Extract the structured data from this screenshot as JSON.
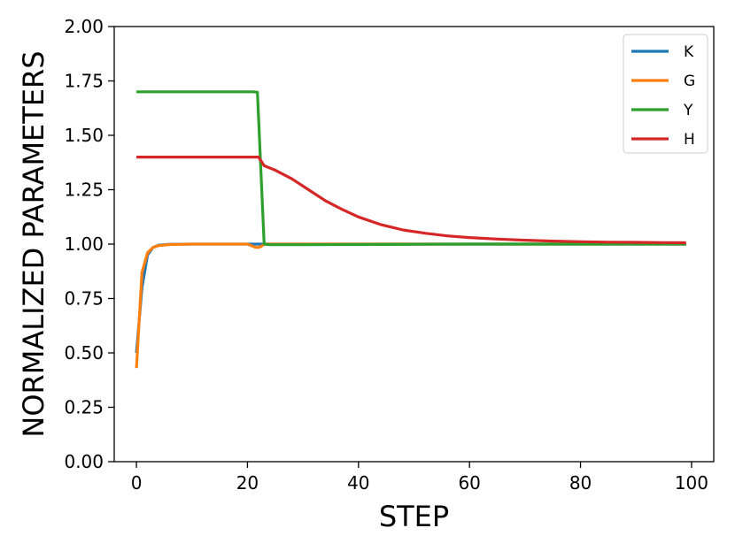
{
  "chart_data": {
    "type": "line",
    "title": "",
    "xlabel": "STEP",
    "ylabel": "NORMALIZED PARAMETERS",
    "xlim": [
      -4,
      104
    ],
    "ylim": [
      0,
      2
    ],
    "xticks": [
      0,
      20,
      40,
      60,
      80,
      100
    ],
    "yticks": [
      0,
      0.25,
      0.5,
      0.75,
      1.0,
      1.25,
      1.5,
      1.75,
      2.0
    ],
    "xtick_labels": [
      "0",
      "20",
      "40",
      "60",
      "80",
      "100"
    ],
    "ytick_labels": [
      "0.00",
      "0.25",
      "0.50",
      "0.75",
      "1.00",
      "1.25",
      "1.50",
      "1.75",
      "2.00"
    ],
    "grid": false,
    "legend_position": "top-right",
    "series": [
      {
        "name": "K",
        "color": "#1f77b4",
        "points": [
          [
            0,
            0.5
          ],
          [
            1,
            0.8
          ],
          [
            2,
            0.95
          ],
          [
            3,
            0.985
          ],
          [
            4,
            0.995
          ],
          [
            6,
            0.999
          ],
          [
            10,
            1.0
          ],
          [
            20,
            1.0
          ],
          [
            21,
            1.0
          ],
          [
            22,
            1.0
          ],
          [
            23,
            1.0
          ],
          [
            30,
            1.0
          ],
          [
            50,
            1.0
          ],
          [
            99,
            1.0
          ]
        ]
      },
      {
        "name": "G",
        "color": "#ff7f0e",
        "points": [
          [
            0,
            0.43
          ],
          [
            1,
            0.87
          ],
          [
            2,
            0.96
          ],
          [
            3,
            0.985
          ],
          [
            4,
            0.993
          ],
          [
            6,
            0.998
          ],
          [
            10,
            1.0
          ],
          [
            20,
            1.0
          ],
          [
            21,
            0.99
          ],
          [
            21.5,
            0.985
          ],
          [
            22,
            0.985
          ],
          [
            22.5,
            0.99
          ],
          [
            23,
            1.0
          ],
          [
            30,
            1.0
          ],
          [
            50,
            1.0
          ],
          [
            99,
            1.0
          ]
        ]
      },
      {
        "name": "Y",
        "color": "#2ca02c",
        "points": [
          [
            0,
            1.7
          ],
          [
            10,
            1.7
          ],
          [
            20,
            1.7
          ],
          [
            21,
            1.7
          ],
          [
            21.8,
            1.698
          ],
          [
            23,
            1.0
          ],
          [
            24,
            0.997
          ],
          [
            30,
            0.997
          ],
          [
            40,
            0.998
          ],
          [
            60,
            1.0
          ],
          [
            99,
            1.0
          ]
        ]
      },
      {
        "name": "H",
        "color": "#d62728",
        "points": [
          [
            0,
            1.4
          ],
          [
            10,
            1.4
          ],
          [
            20,
            1.4
          ],
          [
            22,
            1.4
          ],
          [
            23,
            1.36
          ],
          [
            25,
            1.34
          ],
          [
            28,
            1.3
          ],
          [
            31,
            1.25
          ],
          [
            34,
            1.2
          ],
          [
            37,
            1.16
          ],
          [
            40,
            1.125
          ],
          [
            44,
            1.09
          ],
          [
            48,
            1.065
          ],
          [
            52,
            1.05
          ],
          [
            56,
            1.038
          ],
          [
            60,
            1.03
          ],
          [
            65,
            1.023
          ],
          [
            70,
            1.018
          ],
          [
            75,
            1.014
          ],
          [
            80,
            1.011
          ],
          [
            85,
            1.009
          ],
          [
            90,
            1.008
          ],
          [
            95,
            1.007
          ],
          [
            99,
            1.006
          ]
        ]
      }
    ]
  }
}
